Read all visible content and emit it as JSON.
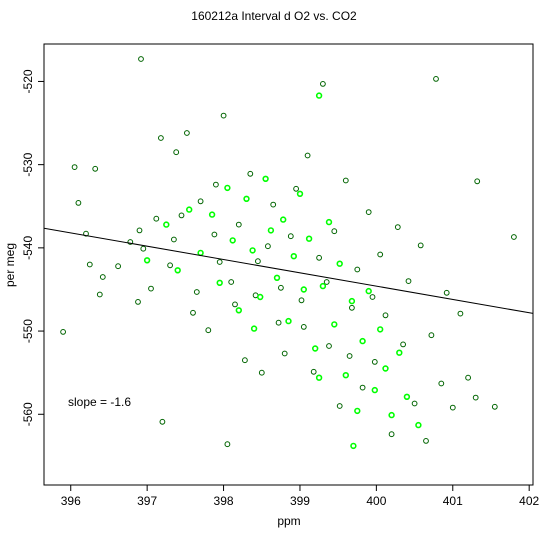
{
  "chart_data": {
    "type": "scatter",
    "title": "160212a   Interval d O2 vs. CO2",
    "xlabel": "ppm",
    "ylabel": "per meg",
    "xlim": [
      395.65,
      402.05
    ],
    "ylim": [
      -568.5,
      -515.5
    ],
    "xticks": [
      396,
      397,
      398,
      399,
      400,
      401,
      402
    ],
    "yticks": [
      -560,
      -550,
      -540,
      -530,
      -520
    ],
    "grid": false,
    "legend": "none",
    "annotation": "slope =  -1.6",
    "fit_line": {
      "slope": -1.6,
      "x0": 399.0,
      "y0": -543.0
    },
    "colors": {
      "dark_series": "#006400",
      "bright_series": "#00ff00",
      "line": "#000000",
      "frame": "#000000"
    },
    "series": [
      {
        "color": "dark",
        "points": [
          [
            395.9,
            -550.1
          ],
          [
            396.05,
            -530.3
          ],
          [
            396.1,
            -534.6
          ],
          [
            396.2,
            -538.3
          ],
          [
            396.25,
            -542.0
          ],
          [
            396.32,
            -530.5
          ],
          [
            396.38,
            -545.6
          ],
          [
            396.42,
            -543.5
          ],
          [
            396.62,
            -542.2
          ],
          [
            396.78,
            -539.3
          ],
          [
            396.88,
            -546.5
          ],
          [
            396.9,
            -537.9
          ],
          [
            396.92,
            -517.3
          ],
          [
            396.95,
            -540.1
          ],
          [
            397.05,
            -544.9
          ],
          [
            397.12,
            -536.5
          ],
          [
            397.18,
            -526.8
          ],
          [
            397.2,
            -560.9
          ],
          [
            397.3,
            -542.1
          ],
          [
            397.38,
            -528.5
          ],
          [
            397.45,
            -536.1
          ],
          [
            397.52,
            -526.2
          ],
          [
            397.6,
            -547.8
          ],
          [
            397.7,
            -534.4
          ],
          [
            397.8,
            -549.9
          ],
          [
            397.88,
            -538.4
          ],
          [
            397.95,
            -541.7
          ],
          [
            398.0,
            -524.1
          ],
          [
            398.05,
            -563.6
          ],
          [
            398.1,
            -544.1
          ],
          [
            398.2,
            -537.2
          ],
          [
            398.28,
            -553.5
          ],
          [
            398.35,
            -531.1
          ],
          [
            398.42,
            -545.7
          ],
          [
            398.5,
            -555.0
          ],
          [
            398.58,
            -539.8
          ],
          [
            398.65,
            -534.8
          ],
          [
            398.72,
            -549.0
          ],
          [
            398.8,
            -552.7
          ],
          [
            398.88,
            -538.6
          ],
          [
            398.95,
            -532.9
          ],
          [
            399.02,
            -546.3
          ],
          [
            399.1,
            -528.9
          ],
          [
            399.18,
            -554.9
          ],
          [
            399.25,
            -541.2
          ],
          [
            399.3,
            -520.3
          ],
          [
            399.38,
            -551.8
          ],
          [
            399.45,
            -538.0
          ],
          [
            399.52,
            -559.0
          ],
          [
            399.6,
            -531.9
          ],
          [
            399.68,
            -547.2
          ],
          [
            399.75,
            -542.6
          ],
          [
            399.82,
            -556.8
          ],
          [
            399.9,
            -535.7
          ],
          [
            399.98,
            -553.7
          ],
          [
            400.05,
            -540.8
          ],
          [
            400.12,
            -548.1
          ],
          [
            400.2,
            -562.4
          ],
          [
            400.28,
            -537.5
          ],
          [
            400.35,
            -551.6
          ],
          [
            400.42,
            -544.0
          ],
          [
            400.5,
            -558.7
          ],
          [
            400.58,
            -539.7
          ],
          [
            400.65,
            -563.2
          ],
          [
            400.72,
            -550.5
          ],
          [
            400.78,
            -519.7
          ],
          [
            400.85,
            -556.3
          ],
          [
            400.92,
            -545.4
          ],
          [
            401.0,
            -559.2
          ],
          [
            401.1,
            -547.9
          ],
          [
            401.2,
            -555.6
          ],
          [
            401.3,
            -558.0
          ],
          [
            401.32,
            -532.0
          ],
          [
            401.55,
            -559.1
          ],
          [
            401.8,
            -538.7
          ],
          [
            397.35,
            -539.0
          ],
          [
            397.65,
            -545.3
          ],
          [
            397.9,
            -532.4
          ],
          [
            398.15,
            -546.8
          ],
          [
            398.45,
            -541.6
          ],
          [
            398.75,
            -544.8
          ],
          [
            399.05,
            -549.5
          ],
          [
            399.35,
            -544.1
          ],
          [
            399.65,
            -553.0
          ],
          [
            399.95,
            -545.9
          ]
        ]
      },
      {
        "color": "bright",
        "points": [
          [
            397.0,
            -541.5
          ],
          [
            397.25,
            -537.2
          ],
          [
            397.4,
            -542.7
          ],
          [
            397.55,
            -535.4
          ],
          [
            397.7,
            -540.6
          ],
          [
            397.85,
            -536.0
          ],
          [
            397.95,
            -544.2
          ],
          [
            398.05,
            -532.8
          ],
          [
            398.12,
            -539.1
          ],
          [
            398.2,
            -547.5
          ],
          [
            398.3,
            -534.1
          ],
          [
            398.38,
            -540.3
          ],
          [
            398.48,
            -545.9
          ],
          [
            398.55,
            -531.7
          ],
          [
            398.62,
            -537.9
          ],
          [
            398.7,
            -543.6
          ],
          [
            398.78,
            -536.6
          ],
          [
            398.85,
            -548.8
          ],
          [
            398.92,
            -541.0
          ],
          [
            399.0,
            -533.5
          ],
          [
            399.05,
            -545.0
          ],
          [
            399.12,
            -538.9
          ],
          [
            399.2,
            -552.1
          ],
          [
            399.25,
            -521.7
          ],
          [
            399.3,
            -544.6
          ],
          [
            399.38,
            -536.9
          ],
          [
            399.45,
            -549.2
          ],
          [
            399.52,
            -541.9
          ],
          [
            399.6,
            -555.3
          ],
          [
            399.68,
            -546.4
          ],
          [
            399.75,
            -559.6
          ],
          [
            399.82,
            -551.2
          ],
          [
            399.9,
            -545.2
          ],
          [
            399.98,
            -557.1
          ],
          [
            400.05,
            -549.8
          ],
          [
            400.12,
            -554.5
          ],
          [
            400.2,
            -560.1
          ],
          [
            400.3,
            -552.6
          ],
          [
            400.4,
            -557.9
          ],
          [
            400.55,
            -561.3
          ],
          [
            399.25,
            -555.6
          ],
          [
            398.4,
            -549.7
          ],
          [
            399.7,
            -563.8
          ]
        ]
      }
    ]
  }
}
